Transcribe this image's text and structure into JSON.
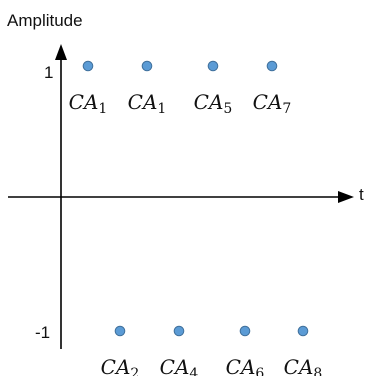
{
  "chart_data": {
    "type": "scatter",
    "ylabel": "Amplitude",
    "xlabel": "t",
    "y_ticks": [
      {
        "value": 1,
        "label": "1"
      },
      {
        "value": -1,
        "label": "-1"
      }
    ],
    "ylim": [
      -1,
      1
    ],
    "series": [
      {
        "color": "#5b9bd5",
        "points": [
          {
            "label_base": "CA",
            "label_sub": "1",
            "y": 1
          },
          {
            "label_base": "CA",
            "label_sub": "2",
            "y": -1
          },
          {
            "label_base": "CA",
            "label_sub": "1",
            "y": 1
          },
          {
            "label_base": "CA",
            "label_sub": "4",
            "y": -1
          },
          {
            "label_base": "CA",
            "label_sub": "5",
            "y": 1
          },
          {
            "label_base": "CA",
            "label_sub": "6",
            "y": -1
          },
          {
            "label_base": "CA",
            "label_sub": "7",
            "y": 1
          },
          {
            "label_base": "CA",
            "label_sub": "8",
            "y": -1
          }
        ]
      }
    ]
  }
}
